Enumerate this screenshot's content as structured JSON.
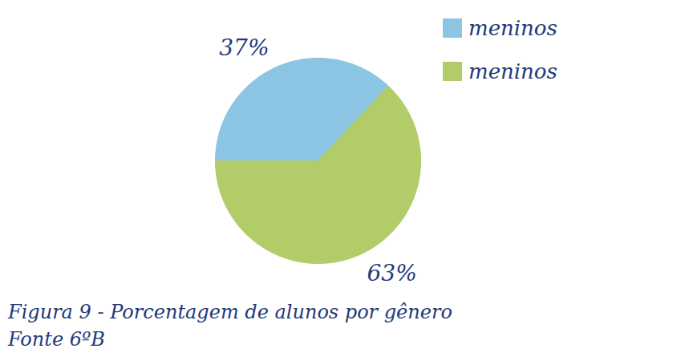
{
  "chart_data": {
    "type": "pie",
    "title": "Figura 9 - Porcentagem de alunos por gênero",
    "caption": "Fonte 6ºB",
    "categories": [
      "meninos",
      "meninos"
    ],
    "values": [
      37,
      63
    ],
    "value_labels": [
      "37%",
      "63%"
    ],
    "colors": [
      "#8cc4e3",
      "#b3cc6a"
    ],
    "data_labels": true,
    "legend": "top-right"
  }
}
